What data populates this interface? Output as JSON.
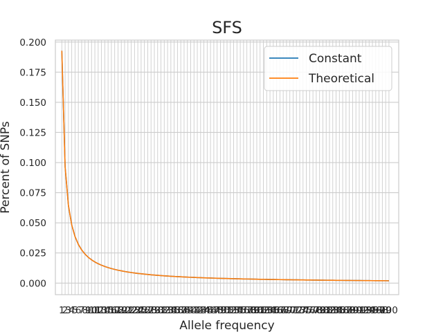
{
  "chart_data": {
    "type": "line",
    "title": "SFS",
    "xlabel": "Allele frequency",
    "ylabel": "Percent of SNPs",
    "x": {
      "start": 1,
      "end": 100,
      "step": 1
    },
    "xlim": [
      -0.95,
      102.95
    ],
    "ylim": [
      -0.0096,
      0.2016
    ],
    "yticks": [
      "0.000",
      "0.025",
      "0.050",
      "0.075",
      "0.100",
      "0.125",
      "0.150",
      "0.175",
      "0.200"
    ],
    "ytick_values": [
      0,
      0.025,
      0.05,
      0.075,
      0.1,
      0.125,
      0.15,
      0.175,
      0.2
    ],
    "grid": true,
    "legend_position": "top-right",
    "series": [
      {
        "name": "Constant",
        "color": "#1f77b4",
        "formula": "(1/i) / H(100)"
      },
      {
        "name": "Theoretical",
        "color": "#ff7f0e",
        "formula": "(1/i) / H(100)"
      }
    ]
  }
}
